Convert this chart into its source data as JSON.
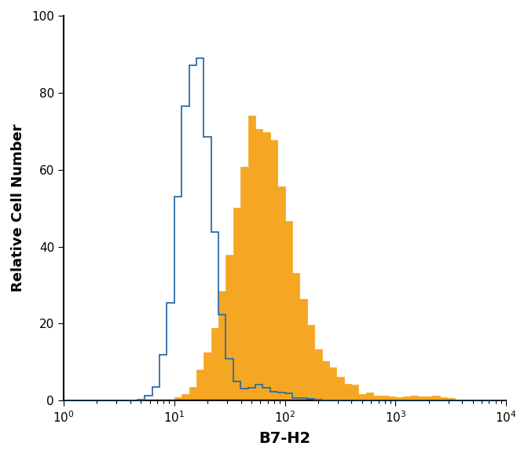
{
  "title": "",
  "xlabel": "B7-H2",
  "ylabel": "Relative Cell Number",
  "xlim": [
    1,
    10000
  ],
  "ylim": [
    0,
    100
  ],
  "yticks": [
    0,
    20,
    40,
    60,
    80,
    100
  ],
  "blue_color": "#2E6DA4",
  "orange_color": "#F5A623",
  "background_color": "#ffffff",
  "xlabel_fontsize": 14,
  "ylabel_fontsize": 13,
  "tick_fontsize": 11,
  "blue_peak": 89,
  "orange_peak": 74,
  "blue_log_mean": 1.19,
  "blue_log_std": 0.14,
  "orange_log_mean": 1.78,
  "orange_log_std": 0.25,
  "n_bins": 60
}
